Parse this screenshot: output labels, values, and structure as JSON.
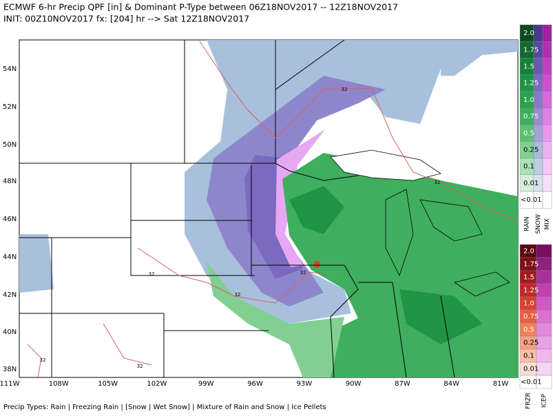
{
  "header": {
    "title": "ECMWF 6-hr Precip QPF [in] & Dominant P-Type between 06Z18NOV2017 -- 12Z18NOV2017",
    "subtitle": "INIT: 00Z10NOV2017 fx: [204] hr --> Sat 12Z18NOV2017"
  },
  "map": {
    "lat_labels": [
      "54N",
      "52N",
      "50N",
      "48N",
      "46N",
      "44N",
      "42N",
      "40N",
      "38N"
    ],
    "lon_labels": [
      "111W",
      "108W",
      "105W",
      "102W",
      "99W",
      "96W",
      "93W",
      "90W",
      "87W",
      "84W",
      "81W"
    ],
    "contour_labels": [
      "32",
      "32",
      "32",
      "32",
      "32",
      "32",
      "32"
    ]
  },
  "legend_upper": {
    "levels": [
      "2.0",
      "1.75",
      "1.5",
      "1.25",
      "1.0",
      "0.75",
      "0.5",
      "0.25",
      "0.1",
      "0.01",
      "<0.01"
    ],
    "colors": [
      [
        "#0b4a22",
        "#4a3a8c",
        "#a020a0"
      ],
      [
        "#0f6a2f",
        "#5a48a0",
        "#b030b0"
      ],
      [
        "#168038",
        "#6a58b0",
        "#c040c0"
      ],
      [
        "#1e9444",
        "#7a68c0",
        "#cc50d0"
      ],
      [
        "#2aa24f",
        "#8a78c8",
        "#d868dc"
      ],
      [
        "#3faf5f",
        "#9a8ad0",
        "#e080e8"
      ],
      [
        "#5dbf73",
        "#a8a0d8",
        "#e898ee"
      ],
      [
        "#82cf92",
        "#a8bcdc",
        "#eeb0f2"
      ],
      [
        "#ace0b6",
        "#bccde4",
        "#f3c8f6"
      ],
      [
        "#d6efdb",
        "#d6e2ee",
        "#f8e0fa"
      ],
      [
        "#ffffff",
        "#ffffff",
        "#ffffff"
      ]
    ],
    "columns": [
      "RAIN",
      "SNOW",
      "MIX"
    ]
  },
  "legend_lower": {
    "levels": [
      "2.0",
      "1.75",
      "1.5",
      "1.25",
      "1.0",
      "0.75",
      "0.5",
      "0.25",
      "0.1",
      "0.01",
      "<0.01"
    ],
    "colors": [
      [
        "#5a0810",
        "#7a1060"
      ],
      [
        "#7a1018",
        "#902080"
      ],
      [
        "#a01c20",
        "#a83098"
      ],
      [
        "#c02828",
        "#c040b0"
      ],
      [
        "#d84030",
        "#d058c4"
      ],
      [
        "#e86040",
        "#dc70d0"
      ],
      [
        "#f08060",
        "#e488dc"
      ],
      [
        "#f4a080",
        "#eaa0e4"
      ],
      [
        "#f8c0a8",
        "#f0b8ec"
      ],
      [
        "#fce0d4",
        "#f6d4f4"
      ],
      [
        "#ffffff",
        "#ffffff"
      ]
    ],
    "columns": [
      "FRZR",
      "ICEP"
    ]
  },
  "footer": {
    "text": "Precip Types: Rain | Freezing Rain | [Snow | Wet Snow] | Mixture of Rain and Snow | Ice Pellets"
  }
}
